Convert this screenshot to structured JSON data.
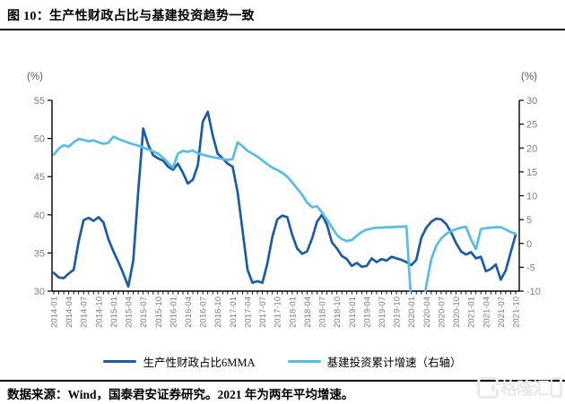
{
  "title": "图 10：生产性财政占比与基建投资趋势一致",
  "footer": {
    "source_text": "数据来源：Wind，国泰君安证券研究。2021 年为两年平均增速。",
    "watermark_text": "格隆汇"
  },
  "chart_data": {
    "type": "line",
    "title": "生产性财政占比与基建投资趋势一致",
    "x_start": "2014-01",
    "x_interval_months": 1,
    "x_labels": [
      "2014-01",
      "2014-04",
      "2014-07",
      "2014-10",
      "2015-01",
      "2015-04",
      "2015-07",
      "2015-10",
      "2016-01",
      "2016-04",
      "2016-07",
      "2016-10",
      "2017-01",
      "2017-04",
      "2017-07",
      "2017-10",
      "2018-01",
      "2018-04",
      "2018-07",
      "2018-10",
      "2019-01",
      "2019-04",
      "2019-07",
      "2019-10",
      "2020-01",
      "2020-04",
      "2020-07",
      "2020-10",
      "2021-01",
      "2021-04",
      "2021-07",
      "2021-10"
    ],
    "left_axis": {
      "unit_label": "(%)",
      "min": 30,
      "max": 55,
      "ticks": [
        55,
        50,
        45,
        40,
        35,
        30
      ]
    },
    "right_axis": {
      "unit_label": "(%)",
      "min": -10,
      "max": 30,
      "ticks": [
        30,
        25,
        20,
        15,
        10,
        5,
        0,
        -5,
        -10
      ]
    },
    "grid": false,
    "legend_position": "bottom",
    "colors": {
      "axis": "#000000",
      "tick_text": "#7f7f7f",
      "unit_text": "#595959"
    },
    "series": [
      {
        "name": "生产性财政占比6MMA",
        "axis": "left",
        "color": "#1a5ca8",
        "values": [
          32.4,
          31.8,
          31.7,
          32.3,
          32.8,
          36.5,
          39.3,
          39.6,
          39.2,
          39.7,
          39.0,
          36.8,
          35.2,
          33.8,
          32.3,
          30.6,
          34.0,
          43.0,
          51.3,
          49.2,
          47.8,
          47.4,
          47.1,
          46.3,
          45.9,
          46.7,
          45.5,
          44.1,
          44.6,
          46.5,
          52.2,
          53.5,
          50.4,
          48.0,
          47.4,
          46.7,
          46.3,
          43.0,
          38.0,
          32.8,
          31.1,
          31.3,
          31.1,
          33.6,
          37.1,
          39.4,
          39.9,
          39.7,
          37.4,
          35.6,
          34.9,
          35.2,
          36.9,
          39.1,
          40.0,
          38.7,
          36.4,
          35.6,
          34.6,
          34.2,
          33.3,
          33.7,
          33.2,
          33.3,
          34.3,
          33.8,
          34.2,
          34.0,
          34.5,
          34.3,
          34.1,
          33.8,
          33.4,
          34.1,
          37.0,
          38.3,
          39.1,
          39.5,
          39.4,
          38.8,
          37.7,
          36.3,
          35.2,
          34.8,
          35.1,
          34.3,
          34.5,
          32.6,
          32.9,
          33.5,
          31.5,
          32.7,
          35.1,
          37.4
        ]
      },
      {
        "name": "基建投资累计增速（右轴）",
        "axis": "right",
        "color": "#56bdea",
        "values": [
          18.6,
          19.9,
          20.6,
          20.3,
          21.2,
          21.9,
          21.7,
          21.4,
          21.6,
          21.2,
          20.9,
          21.1,
          22.4,
          21.9,
          21.5,
          21.1,
          20.8,
          20.5,
          20.1,
          19.7,
          19.3,
          18.8,
          18.0,
          16.9,
          15.9,
          18.8,
          19.4,
          19.2,
          19.5,
          18.9,
          18.6,
          18.3,
          18.1,
          17.9,
          17.7,
          17.5,
          17.7,
          21.2,
          20.4,
          19.4,
          18.8,
          18.2,
          17.4,
          16.6,
          15.9,
          15.4,
          14.8,
          14.0,
          12.8,
          11.5,
          10.2,
          8.6,
          7.6,
          7.8,
          6.5,
          5.0,
          3.4,
          1.8,
          0.9,
          0.5,
          0.7,
          1.6,
          2.4,
          2.9,
          3.1,
          3.3,
          3.3,
          3.4,
          3.4,
          3.5,
          3.5,
          3.6,
          -13.0,
          -30.0,
          -16.5,
          -8.8,
          -3.3,
          -0.5,
          1.0,
          2.0,
          2.6,
          3.0,
          3.3,
          3.5,
          0.8,
          -1.2,
          3.0,
          3.2,
          3.3,
          3.4,
          3.4,
          2.9,
          2.4,
          2.0
        ]
      }
    ]
  }
}
